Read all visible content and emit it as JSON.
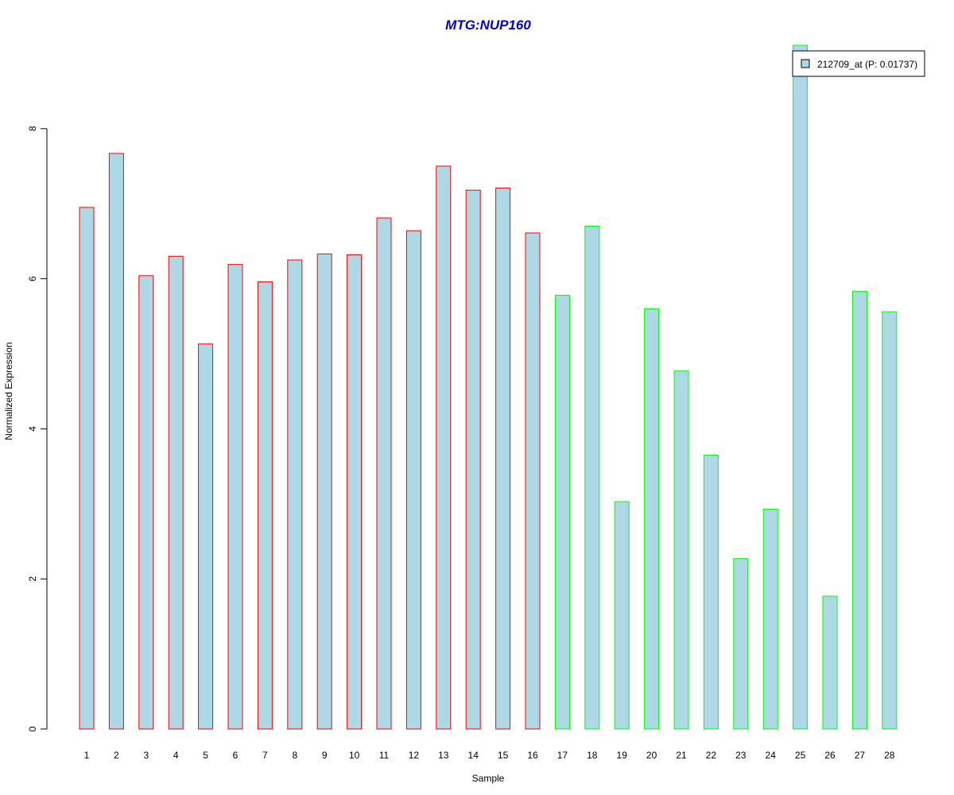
{
  "chart_data": {
    "type": "bar",
    "title": "MTG:NUP160",
    "xlabel": "Sample",
    "ylabel": "Normalized Expression",
    "ylim": [
      0,
      9.2
    ],
    "yticks": [
      0,
      2,
      4,
      6,
      8
    ],
    "categories": [
      "1",
      "2",
      "3",
      "4",
      "5",
      "6",
      "7",
      "8",
      "9",
      "10",
      "11",
      "12",
      "13",
      "14",
      "15",
      "16",
      "17",
      "18",
      "19",
      "20",
      "21",
      "22",
      "23",
      "24",
      "25",
      "26",
      "27",
      "28"
    ],
    "series": [
      {
        "name": "212709_at (P: 0.01737)",
        "values": [
          6.95,
          7.67,
          6.04,
          6.3,
          5.13,
          6.19,
          5.96,
          6.25,
          6.33,
          6.32,
          6.81,
          6.64,
          7.5,
          7.18,
          7.21,
          6.61,
          5.78,
          6.7,
          3.03,
          5.6,
          4.77,
          3.65,
          2.27,
          2.93,
          9.11,
          1.77,
          5.83,
          5.56
        ]
      }
    ],
    "bar_fill": "#add8e6",
    "group_border_colors": [
      "#ff0000",
      "#ff0000",
      "#ff0000",
      "#ff0000",
      "#ff0000",
      "#ff0000",
      "#ff0000",
      "#ff0000",
      "#ff0000",
      "#ff0000",
      "#ff0000",
      "#ff0000",
      "#ff0000",
      "#ff0000",
      "#ff0000",
      "#ff0000",
      "#00ff00",
      "#00ff00",
      "#00ff00",
      "#00ff00",
      "#00ff00",
      "#00ff00",
      "#00ff00",
      "#00ff00",
      "#00ff00",
      "#00ff00",
      "#00ff00",
      "#00ff00"
    ],
    "title_color": "#0000cd",
    "legend": {
      "label": "212709_at (P: 0.01737)",
      "placement": "top-right"
    },
    "grid": false
  }
}
